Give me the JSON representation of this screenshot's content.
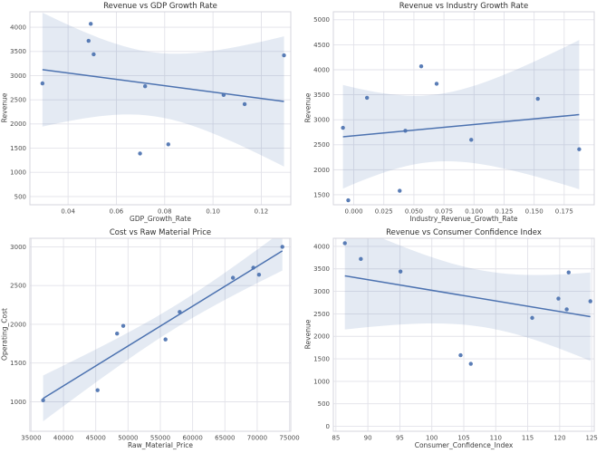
{
  "figure": {
    "background": "#ffffff",
    "rows": 2,
    "cols": 2
  },
  "style": {
    "point_color": "#4c72b0",
    "line_color": "#4c72b0",
    "band_color": "#4c72b0",
    "band_opacity": 0.15,
    "grid_color": "#e2e2e9",
    "spine_color": "#d4d4dc",
    "tick_text_color": "#4d4d4d",
    "ci_level": 95
  },
  "chart_data": [
    {
      "type": "scatter",
      "regression": true,
      "title": "Revenue vs GDP Growth Rate",
      "xlabel": "GDP_Growth_Rate",
      "ylabel": "Revenue",
      "x": [
        0.0294,
        0.0494,
        0.0485,
        0.0506,
        0.0719,
        0.0698,
        0.0815,
        0.1044,
        0.1131,
        0.1294
      ],
      "y": [
        2840,
        4070,
        3720,
        3440,
        2780,
        1390,
        1580,
        2600,
        2410,
        3420
      ],
      "xlim": [
        0.0242,
        0.1322
      ],
      "ylim": [
        330,
        4320
      ],
      "xticks": [
        0.04,
        0.06,
        0.08,
        0.1,
        0.12
      ],
      "xtick_labels": [
        "0.04",
        "0.06",
        "0.08",
        "0.10",
        "0.12"
      ],
      "yticks": [
        500,
        1000,
        1500,
        2000,
        2500,
        3000,
        3500,
        4000
      ],
      "grid": true,
      "legend": null
    },
    {
      "type": "scatter",
      "regression": true,
      "title": "Revenue vs Industry Growth Rate",
      "xlabel": "Industry_Revenue_Growth_Rate",
      "ylabel": "Revenue",
      "x": [
        -0.009,
        -0.0046,
        0.011,
        0.0382,
        0.0429,
        0.0561,
        0.0689,
        0.0977,
        0.1531,
        0.1875
      ],
      "y": [
        2840,
        1390,
        3440,
        1580,
        2780,
        4070,
        3720,
        2600,
        3420,
        2410
      ],
      "xlim": [
        -0.017,
        0.2
      ],
      "ylim": [
        1300,
        5160
      ],
      "xticks": [
        0.0,
        0.025,
        0.05,
        0.075,
        0.1,
        0.125,
        0.15,
        0.175
      ],
      "xtick_labels": [
        "0.000",
        "0.025",
        "0.050",
        "0.075",
        "0.100",
        "0.125",
        "0.150",
        "0.175"
      ],
      "yticks": [
        1500,
        2000,
        2500,
        3000,
        3500,
        4000,
        4500,
        5000
      ],
      "grid": true,
      "legend": null
    },
    {
      "type": "scatter",
      "regression": true,
      "title": "Cost vs Raw Material Price",
      "xlabel": "Raw_Material_Price",
      "ylabel": "Operating_Cost",
      "x": [
        36850,
        45280,
        48300,
        49260,
        55800,
        58000,
        66250,
        69400,
        70280,
        73900
      ],
      "y": [
        1020,
        1150,
        1880,
        1980,
        1805,
        2160,
        2600,
        2730,
        2640,
        3000
      ],
      "xlim": [
        34800,
        75200
      ],
      "ylim": [
        620,
        3110
      ],
      "xticks": [
        35000,
        40000,
        45000,
        50000,
        55000,
        60000,
        65000,
        70000,
        75000
      ],
      "xtick_labels": [
        "35000",
        "40000",
        "45000",
        "50000",
        "55000",
        "60000",
        "65000",
        "70000",
        "75000"
      ],
      "yticks": [
        1000,
        1500,
        2000,
        2500,
        3000
      ],
      "grid": true,
      "legend": null
    },
    {
      "type": "scatter",
      "regression": true,
      "title": "Revenue vs Consumer Confidence Index",
      "xlabel": "Consumer_Confidence_Index",
      "ylabel": "Revenue",
      "x": [
        86.4,
        88.9,
        95.1,
        104.5,
        106.1,
        115.7,
        119.8,
        121.4,
        121.1,
        124.8
      ],
      "y": [
        4070,
        3720,
        3440,
        1580,
        1390,
        2410,
        2840,
        3420,
        2600,
        2780
      ],
      "xlim": [
        84.6,
        125.4
      ],
      "ylim": [
        -110,
        4180
      ],
      "xticks": [
        85,
        90,
        95,
        100,
        105,
        110,
        115,
        120,
        125
      ],
      "xtick_labels": [
        "85",
        "90",
        "95",
        "100",
        "105",
        "110",
        "115",
        "120",
        "125"
      ],
      "yticks": [
        0,
        500,
        1000,
        1500,
        2000,
        2500,
        3000,
        3500,
        4000
      ],
      "grid": true,
      "legend": null
    }
  ]
}
